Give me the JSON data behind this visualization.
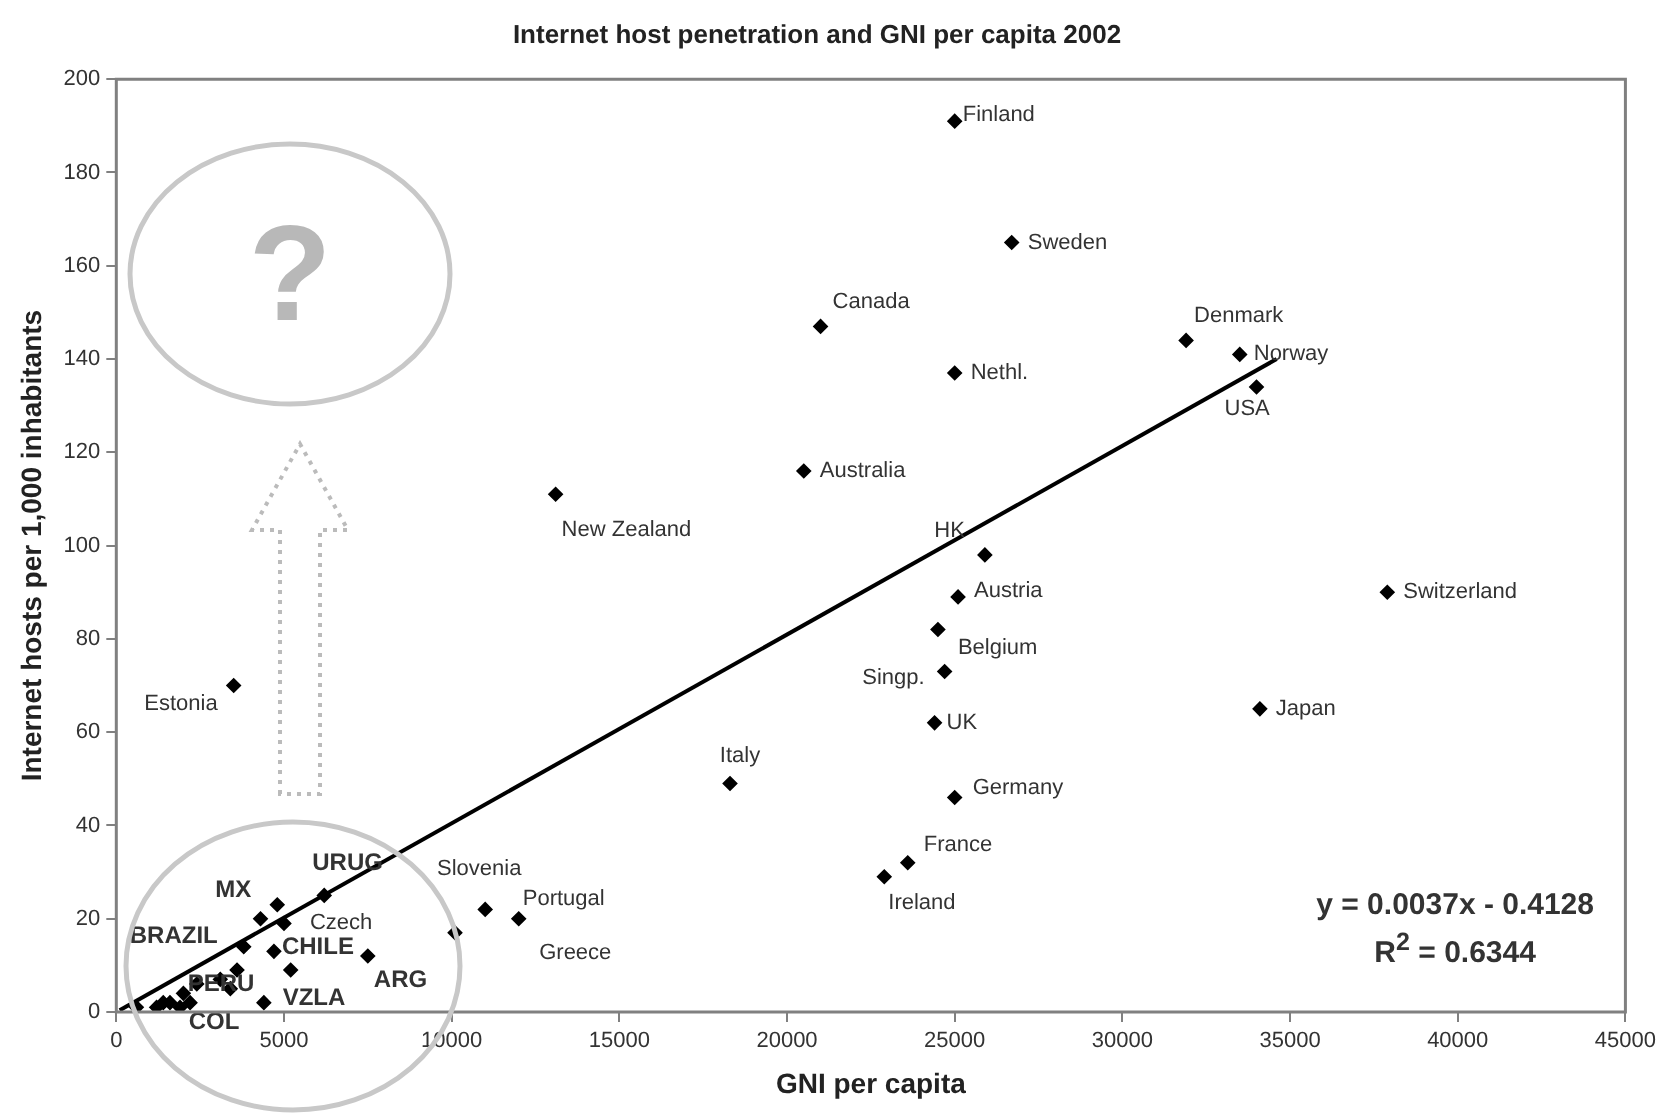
{
  "chart_data": {
    "type": "scatter",
    "title": "Internet host penetration and GNI per capita 2002",
    "xlabel": "GNI per capita",
    "ylabel": "Internet hosts per 1,000 inhabitants",
    "xlim": [
      0,
      45000
    ],
    "xticks": [
      0,
      5000,
      10000,
      15000,
      20000,
      25000,
      30000,
      35000,
      40000,
      45000
    ],
    "ylim": [
      0,
      200
    ],
    "yticks": [
      0,
      20,
      40,
      60,
      80,
      100,
      120,
      140,
      160,
      180,
      200
    ],
    "grid": false,
    "legend": false,
    "marker": "diamond",
    "series": [
      {
        "type": "scatter",
        "color": "#000000",
        "x": [
          25000,
          26700,
          21000,
          25000,
          20500,
          13100,
          25900,
          25100,
          24500,
          24700,
          24400,
          25000,
          23600,
          22900,
          37900,
          34100,
          31900,
          33500,
          34000,
          18300,
          3500,
          10100,
          11000,
          12000,
          6200,
          4800,
          4300,
          5000,
          4700,
          7500,
          5200,
          4400,
          3800,
          3600,
          3100,
          3400,
          2400,
          2000,
          1600,
          1400,
          1200,
          600,
          2200,
          1900
        ],
        "values": [
          191,
          165,
          147,
          137,
          116,
          111,
          98,
          89,
          82,
          73,
          62,
          46,
          32,
          29,
          90,
          65,
          144,
          141,
          134,
          49,
          70,
          17,
          22,
          20,
          25,
          23,
          20,
          19,
          13,
          12,
          9,
          2,
          14,
          9,
          7,
          5,
          6,
          4,
          2,
          2,
          1,
          1,
          2,
          1
        ]
      },
      {
        "type": "line",
        "color": "#000000",
        "marker": "none",
        "x": [
          100,
          34600
        ],
        "values": [
          0.4,
          140
        ]
      }
    ],
    "annotations": [
      {
        "text": "Finland",
        "x": 25000,
        "y": 191
      },
      {
        "text": "Sweden",
        "x": 26700,
        "y": 165
      },
      {
        "text": "Canada",
        "x": 21000,
        "y": 147
      },
      {
        "text": "Nethl.",
        "x": 25000,
        "y": 137
      },
      {
        "text": "Australia",
        "x": 20500,
        "y": 116
      },
      {
        "text": "New Zealand",
        "x": 13100,
        "y": 111
      },
      {
        "text": "HK",
        "x": 25900,
        "y": 98
      },
      {
        "text": "Austria",
        "x": 25100,
        "y": 89
      },
      {
        "text": "Belgium",
        "x": 24500,
        "y": 82
      },
      {
        "text": "Singp.",
        "x": 24700,
        "y": 73
      },
      {
        "text": "UK",
        "x": 24400,
        "y": 62
      },
      {
        "text": "Germany",
        "x": 25000,
        "y": 46
      },
      {
        "text": "France",
        "x": 23600,
        "y": 32
      },
      {
        "text": "Ireland",
        "x": 22900,
        "y": 29
      },
      {
        "text": "Switzerland",
        "x": 37900,
        "y": 90
      },
      {
        "text": "Japan",
        "x": 34100,
        "y": 65
      },
      {
        "text": "Denmark",
        "x": 31900,
        "y": 144
      },
      {
        "text": "Norway",
        "x": 33500,
        "y": 141
      },
      {
        "text": "USA",
        "x": 34000,
        "y": 134
      },
      {
        "text": "Italy",
        "x": 18300,
        "y": 49
      },
      {
        "text": "Estonia",
        "x": 3500,
        "y": 70
      },
      {
        "text": "Slovenia",
        "x": 10100,
        "y": 17
      },
      {
        "text": "Portugal",
        "x": 12000,
        "y": 20
      },
      {
        "text": "Greece",
        "x": 11000,
        "y": 22
      },
      {
        "text": "URUG",
        "x": 6200,
        "y": 25
      },
      {
        "text": "MX",
        "x": 4800,
        "y": 23
      },
      {
        "text": "Czech",
        "x": 5000,
        "y": 19
      },
      {
        "text": "BRAZIL",
        "x": 3800,
        "y": 14
      },
      {
        "text": "CHILE",
        "x": 4700,
        "y": 13
      },
      {
        "text": "ARG",
        "x": 7500,
        "y": 12
      },
      {
        "text": "VZLA",
        "x": 5200,
        "y": 9
      },
      {
        "text": "PERU",
        "x": 3600,
        "y": 9
      },
      {
        "text": "COL",
        "x": 2400,
        "y": 6
      },
      "y = 0.0037x - 0.4128",
      "R$^{2}$ = 0.6344",
      "?"
    ]
  }
}
